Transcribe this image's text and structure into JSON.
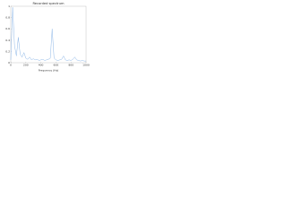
{
  "chart_data": {
    "type": "line",
    "title": "Recorded spectrum",
    "x_label": "Frequency (Hz)",
    "x": [
      0,
      25,
      50,
      75,
      100,
      125,
      150,
      175,
      200,
      225,
      250,
      275,
      300,
      325,
      350,
      375,
      400,
      425,
      450,
      475,
      500,
      525,
      550,
      575,
      600,
      625,
      650,
      675,
      700,
      725,
      750,
      775,
      800,
      825,
      850,
      875,
      900,
      925,
      950,
      975,
      1000
    ],
    "series": [
      {
        "name": "spectrum",
        "color": "#8fb8e8",
        "values": [
          0.05,
          0.98,
          0.3,
          0.12,
          0.45,
          0.15,
          0.1,
          0.18,
          0.08,
          0.06,
          0.1,
          0.05,
          0.07,
          0.05,
          0.06,
          0.04,
          0.05,
          0.06,
          0.04,
          0.05,
          0.06,
          0.08,
          0.6,
          0.08,
          0.05,
          0.04,
          0.05,
          0.06,
          0.12,
          0.05,
          0.04,
          0.05,
          0.04,
          0.06,
          0.1,
          0.05,
          0.04,
          0.03,
          0.04,
          0.03,
          0.03
        ]
      }
    ],
    "xlim": [
      0,
      1000
    ],
    "ylim": [
      0,
      1
    ],
    "xticks": [
      0,
      200,
      400,
      600,
      800,
      1000
    ],
    "yticks": [
      0,
      0.2,
      0.4,
      0.6,
      0.8,
      1
    ]
  }
}
